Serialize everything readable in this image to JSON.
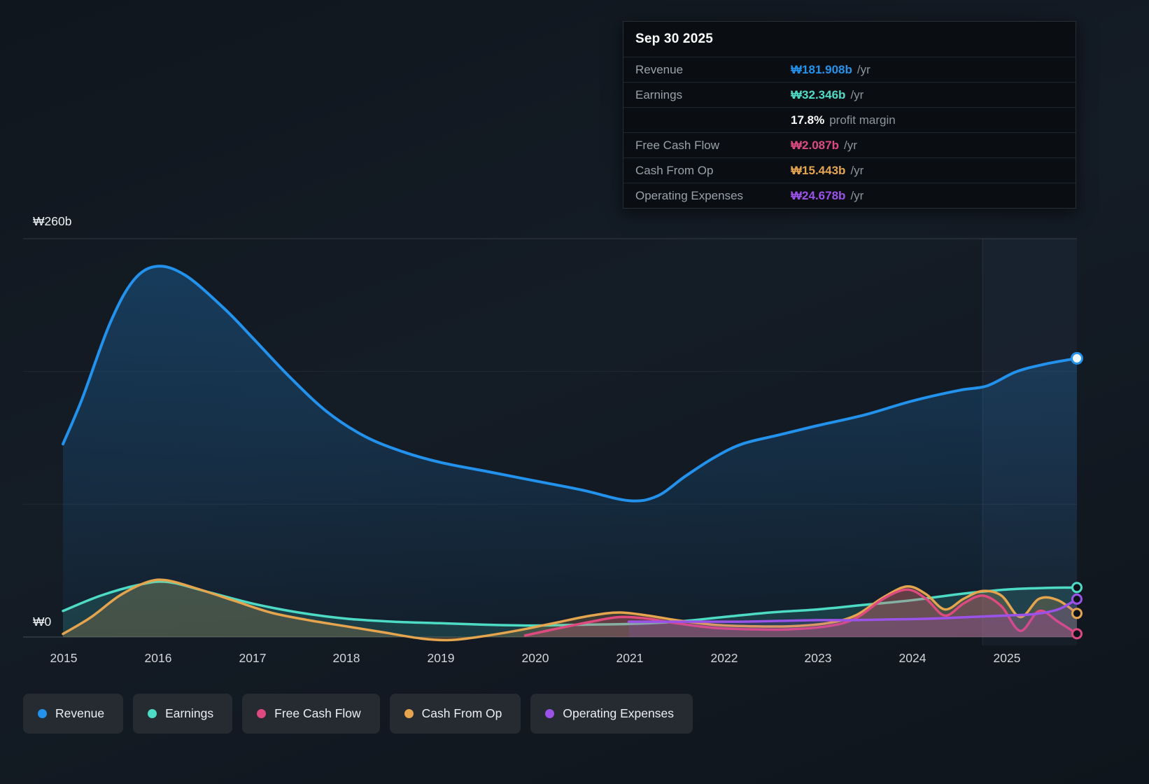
{
  "colors": {
    "revenue": "#2292ec",
    "earnings": "#4ddbc6",
    "free_cash_flow": "#de4a7f",
    "cash_from_op": "#e5a54f",
    "operating_expenses": "#9b52e8",
    "white": "#ffffff",
    "background": "#131a22",
    "tooltip_background": "#0a0e13",
    "legend_pill_background": "#262b31"
  },
  "tooltip": {
    "date": "Sep 30 2025",
    "rows": [
      {
        "label": "Revenue",
        "value": "₩181.908b",
        "unit": "/yr",
        "color": "#2292ec"
      },
      {
        "label": "Earnings",
        "value": "₩32.346b",
        "unit": "/yr",
        "color": "#4ddbc6"
      },
      {
        "label": "",
        "value": "17.8%",
        "unit": "profit margin",
        "color": "#ffffff"
      },
      {
        "label": "Free Cash Flow",
        "value": "₩2.087b",
        "unit": "/yr",
        "color": "#de4a7f"
      },
      {
        "label": "Cash From Op",
        "value": "₩15.443b",
        "unit": "/yr",
        "color": "#e5a54f"
      },
      {
        "label": "Operating Expenses",
        "value": "₩24.678b",
        "unit": "/yr",
        "color": "#9b52e8"
      }
    ]
  },
  "axis": {
    "y_top": "₩260b",
    "y_bottom": "₩0",
    "x_labels": [
      "2015",
      "2016",
      "2017",
      "2018",
      "2019",
      "2020",
      "2021",
      "2022",
      "2023",
      "2024",
      "2025"
    ]
  },
  "legend": {
    "items": [
      {
        "label": "Revenue",
        "color": "#2292ec"
      },
      {
        "label": "Earnings",
        "color": "#4ddbc6"
      },
      {
        "label": "Free Cash Flow",
        "color": "#de4a7f"
      },
      {
        "label": "Cash From Op",
        "color": "#e5a54f"
      },
      {
        "label": "Operating Expenses",
        "color": "#9b52e8"
      }
    ]
  },
  "chart_data": {
    "type": "area",
    "title": "Revenue & Expenses History (₩ billions)",
    "x_range": [
      2015,
      2025.75
    ],
    "y_range": [
      0,
      260
    ],
    "y_gridlines": [
      0,
      86.67,
      173.33,
      260
    ],
    "x_tick_labels": [
      "2015",
      "2016",
      "2017",
      "2018",
      "2019",
      "2020",
      "2021",
      "2022",
      "2023",
      "2024",
      "2025"
    ],
    "highlight_band_x": [
      2024.75,
      2025.75
    ],
    "legend_position": "bottom",
    "series": [
      {
        "name": "Revenue",
        "color": "#2292ec",
        "stroke_width": 4,
        "fill": "gradient",
        "fill_opacity": 0.3,
        "points": [
          [
            2015,
            126
          ],
          [
            2015.2,
            155
          ],
          [
            2015.5,
            205
          ],
          [
            2015.75,
            233
          ],
          [
            2016,
            242
          ],
          [
            2016.3,
            236
          ],
          [
            2016.7,
            215
          ],
          [
            2017,
            196
          ],
          [
            2017.4,
            170
          ],
          [
            2017.8,
            147
          ],
          [
            2018.2,
            131
          ],
          [
            2018.6,
            121
          ],
          [
            2019,
            114
          ],
          [
            2019.5,
            108
          ],
          [
            2020,
            102
          ],
          [
            2020.5,
            96
          ],
          [
            2021,
            89
          ],
          [
            2021.3,
            92
          ],
          [
            2021.6,
            105
          ],
          [
            2021.9,
            117
          ],
          [
            2022.2,
            126
          ],
          [
            2022.6,
            132
          ],
          [
            2023,
            138
          ],
          [
            2023.5,
            145
          ],
          [
            2024,
            154
          ],
          [
            2024.5,
            161
          ],
          [
            2024.8,
            164
          ],
          [
            2025.1,
            173
          ],
          [
            2025.4,
            178
          ],
          [
            2025.75,
            181.9
          ]
        ]
      },
      {
        "name": "Earnings",
        "color": "#4ddbc6",
        "stroke_width": 3.5,
        "fill": "flat",
        "fill_opacity": 0.16,
        "points": [
          [
            2015,
            17
          ],
          [
            2015.4,
            27
          ],
          [
            2015.8,
            34
          ],
          [
            2016.1,
            36
          ],
          [
            2016.5,
            30
          ],
          [
            2017,
            22
          ],
          [
            2017.5,
            16
          ],
          [
            2018,
            12
          ],
          [
            2018.5,
            10
          ],
          [
            2019,
            9
          ],
          [
            2019.5,
            8
          ],
          [
            2020,
            7.5
          ],
          [
            2020.5,
            8
          ],
          [
            2021,
            8.5
          ],
          [
            2021.5,
            10
          ],
          [
            2022,
            13
          ],
          [
            2022.5,
            16
          ],
          [
            2023,
            18
          ],
          [
            2023.5,
            21
          ],
          [
            2024,
            24
          ],
          [
            2024.5,
            28
          ],
          [
            2025,
            31
          ],
          [
            2025.4,
            32
          ],
          [
            2025.75,
            32.3
          ]
        ]
      },
      {
        "name": "Cash From Op",
        "color": "#e5a54f",
        "stroke_width": 3.5,
        "fill": "flat",
        "fill_opacity": 0.2,
        "points": [
          [
            2015,
            2
          ],
          [
            2015.3,
            13
          ],
          [
            2015.6,
            27
          ],
          [
            2015.9,
            36
          ],
          [
            2016.1,
            37
          ],
          [
            2016.4,
            32
          ],
          [
            2016.8,
            24
          ],
          [
            2017.2,
            16
          ],
          [
            2017.6,
            11
          ],
          [
            2018,
            7
          ],
          [
            2018.4,
            3
          ],
          [
            2018.8,
            -1
          ],
          [
            2019.1,
            -2
          ],
          [
            2019.4,
            0
          ],
          [
            2019.8,
            4
          ],
          [
            2020.2,
            9
          ],
          [
            2020.6,
            14
          ],
          [
            2020.9,
            16
          ],
          [
            2021.2,
            14
          ],
          [
            2021.5,
            11
          ],
          [
            2021.9,
            8
          ],
          [
            2022.3,
            7
          ],
          [
            2022.7,
            7
          ],
          [
            2023.1,
            9
          ],
          [
            2023.4,
            14
          ],
          [
            2023.7,
            26
          ],
          [
            2023.95,
            33
          ],
          [
            2024.15,
            28
          ],
          [
            2024.35,
            18
          ],
          [
            2024.55,
            25
          ],
          [
            2024.75,
            30
          ],
          [
            2024.95,
            27
          ],
          [
            2025.15,
            13
          ],
          [
            2025.35,
            25
          ],
          [
            2025.55,
            24
          ],
          [
            2025.75,
            15.4
          ]
        ]
      },
      {
        "name": "Free Cash Flow",
        "color": "#de4a7f",
        "stroke_width": 3.5,
        "fill": "flat",
        "fill_opacity": 0.24,
        "points": [
          [
            2019.9,
            1
          ],
          [
            2020.2,
            5
          ],
          [
            2020.6,
            10
          ],
          [
            2020.9,
            13
          ],
          [
            2021.2,
            12
          ],
          [
            2021.5,
            9
          ],
          [
            2021.9,
            6
          ],
          [
            2022.3,
            5
          ],
          [
            2022.7,
            5
          ],
          [
            2023.1,
            7
          ],
          [
            2023.4,
            12
          ],
          [
            2023.7,
            25
          ],
          [
            2023.95,
            31
          ],
          [
            2024.15,
            25
          ],
          [
            2024.35,
            14
          ],
          [
            2024.55,
            22
          ],
          [
            2024.75,
            27
          ],
          [
            2024.95,
            20
          ],
          [
            2025.15,
            4
          ],
          [
            2025.35,
            17
          ],
          [
            2025.55,
            10
          ],
          [
            2025.75,
            2.1
          ]
        ]
      },
      {
        "name": "Operating Expenses",
        "color": "#9b52e8",
        "stroke_width": 3.5,
        "fill": "flat",
        "fill_opacity": 0.16,
        "points": [
          [
            2021,
            10
          ],
          [
            2021.4,
            10
          ],
          [
            2021.8,
            10
          ],
          [
            2022.2,
            10
          ],
          [
            2022.6,
            10.5
          ],
          [
            2023,
            11
          ],
          [
            2023.4,
            11
          ],
          [
            2023.8,
            11.5
          ],
          [
            2024.2,
            12
          ],
          [
            2024.6,
            13
          ],
          [
            2025,
            14
          ],
          [
            2025.3,
            15
          ],
          [
            2025.55,
            18
          ],
          [
            2025.75,
            24.7
          ]
        ]
      }
    ]
  }
}
